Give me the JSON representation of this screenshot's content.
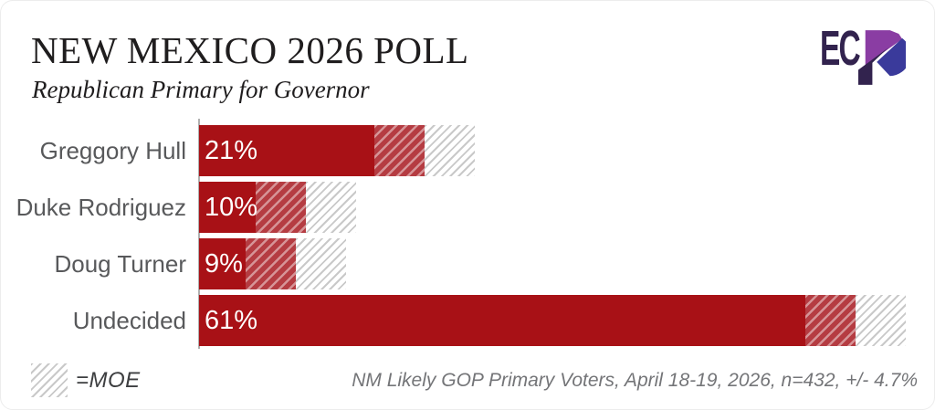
{
  "header": {
    "title": "NEW MEXICO 2026 POLL",
    "subtitle": "Republican Primary for Governor"
  },
  "logo": {
    "ec_text": "EC",
    "p_letter": "P",
    "colors": {
      "dark": "#32234e",
      "purple": "#8a3da3",
      "indigo": "#3a3a9b"
    }
  },
  "chart_data": {
    "type": "bar",
    "orientation": "horizontal",
    "categories": [
      "Greggory Hull",
      "Duke Rodriguez",
      "Doug Turner",
      "Undecided"
    ],
    "values": [
      21,
      10,
      9,
      61
    ],
    "value_labels": [
      "21%",
      "10%",
      "9%",
      "61%"
    ],
    "moe_percent": 4.7,
    "xlim": [
      0,
      66
    ],
    "grid": false,
    "legend_position": "bottom-left",
    "colors": {
      "bar": "#a81116",
      "moe_hatch_bg": "#b53c42",
      "moe_hatch_stripe": "#d69497",
      "moe_hatch_gray": "#c9c9c9",
      "axis_line": "#b0b0b0",
      "category_label": "#58595b"
    }
  },
  "legend": {
    "label": "=MOE"
  },
  "footer": {
    "note": "NM Likely GOP Primary Voters, April 18-19, 2026, n=432, +/- 4.7%"
  }
}
